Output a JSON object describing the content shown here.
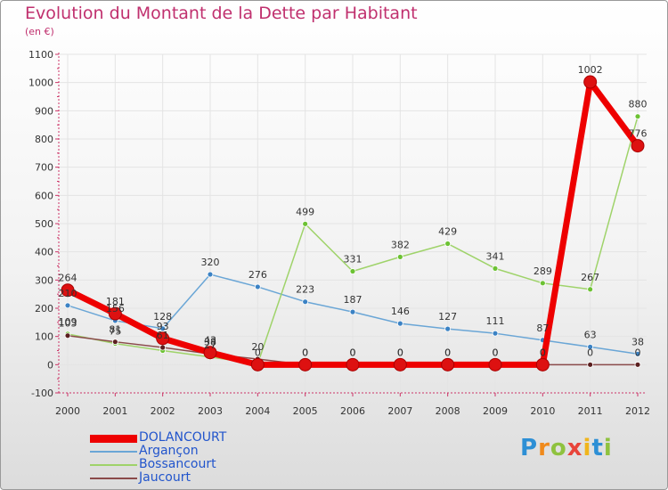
{
  "title": "Evolution du Montant de la Dette par Habitant",
  "unit_label": "(en €)",
  "brand": {
    "letters": [
      "P",
      "r",
      "o",
      "x",
      "i",
      "t",
      "i"
    ],
    "colors": [
      "#2d8fd5",
      "#f08a1c",
      "#8fc23f",
      "#e8443a",
      "#f0b51c",
      "#2d8fd5",
      "#8fc23f"
    ]
  },
  "colors": {
    "title": "#c0306e",
    "axis": "#cc3366",
    "grid": "#e4e4e4",
    "label": "#333333"
  },
  "chart_data": {
    "type": "line",
    "title": "Evolution du Montant de la Dette par Habitant",
    "ylabel": "(en €)",
    "xlabel": "",
    "ylim": [
      -100,
      1100
    ],
    "yticks": [
      "-100",
      "0",
      "100",
      "200",
      "300",
      "400",
      "500",
      "600",
      "700",
      "800",
      "900",
      "1000",
      "1100"
    ],
    "x": [
      "2000",
      "2001",
      "2002",
      "2003",
      "2004",
      "2005",
      "2006",
      "2007",
      "2008",
      "2009",
      "2010",
      "2011",
      "2012"
    ],
    "grid": true,
    "legend_position": "bottom-left",
    "series": [
      {
        "name": "DOLANCOURT",
        "color": "#ee0000",
        "markerColor": "#dd1111",
        "width": 7,
        "marker": 7,
        "values": [
          264,
          181,
          93,
          43,
          0,
          0,
          0,
          0,
          0,
          0,
          0,
          1002,
          776
        ],
        "labels": [
          "264",
          "181",
          "93",
          "43",
          "0",
          "0",
          "0",
          "0",
          "0",
          "0",
          "0",
          "1002",
          "776"
        ]
      },
      {
        "name": "Argançon",
        "color": "#6aa6d6",
        "markerColor": "#3b82c4",
        "width": 1.5,
        "marker": 3,
        "values": [
          210,
          156,
          128,
          320,
          276,
          223,
          187,
          146,
          127,
          111,
          87,
          63,
          38
        ],
        "labels": [
          "210",
          "156",
          "128",
          "320",
          "276",
          "223",
          "187",
          "146",
          "127",
          "111",
          "87",
          "63",
          "38"
        ]
      },
      {
        "name": "Bossancourt",
        "color": "#9fd36a",
        "markerColor": "#6cc233",
        "width": 1.5,
        "marker": 3,
        "values": [
          109,
          75,
          50,
          27,
          3,
          499,
          331,
          382,
          429,
          341,
          289,
          267,
          880
        ],
        "labels": [
          "109",
          "75",
          "",
          "27",
          "",
          "499",
          "331",
          "382",
          "429",
          "341",
          "289",
          "267",
          "880"
        ]
      },
      {
        "name": "Jaucourt",
        "color": "#8a4a4a",
        "markerColor": "#5a1f1f",
        "width": 1.5,
        "marker": 3,
        "values": [
          103,
          81,
          61,
          38,
          20,
          0,
          0,
          0,
          0,
          0,
          0,
          0,
          0
        ],
        "labels": [
          "103",
          "81",
          "61",
          "38",
          "20",
          "0",
          "0",
          "0",
          "0",
          "0",
          "0",
          "0",
          "0"
        ]
      }
    ]
  }
}
